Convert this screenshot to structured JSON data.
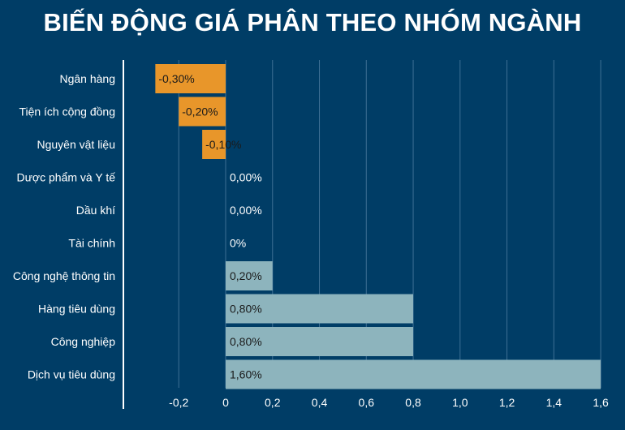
{
  "title": "BIẾN ĐỘNG GIÁ PHÂN THEO NHÓM NGÀNH",
  "colors": {
    "background": "#003d66",
    "negative_bar": "#e8962a",
    "positive_bar": "#8db4bd",
    "gridline": "#3d6f94",
    "text": "#ffffff",
    "bar_label_text": "#1a1a1a"
  },
  "chart_data": {
    "type": "bar",
    "orientation": "horizontal",
    "categories": [
      "Ngân hàng",
      "Tiện ích cộng đồng",
      "Nguyên vật liệu",
      "Dược phẩm và Y tế",
      "Dầu khí",
      "Tài chính",
      "Công nghệ thông tin",
      "Hàng tiêu dùng",
      "Công nghiệp",
      "Dịch vụ tiêu dùng"
    ],
    "values": [
      -0.3,
      -0.2,
      -0.1,
      0,
      0,
      0,
      0.2,
      0.8,
      0.8,
      1.6
    ],
    "data_labels": [
      "-0,30%",
      "-0,20%",
      "-0,10%",
      "0,00%",
      "0,00%",
      "0%",
      "0,20%",
      "0,80%",
      "0,80%",
      "1,60%"
    ],
    "xlim": [
      -0.43,
      1.6
    ],
    "x_ticks": [
      -0.2,
      0,
      0.2,
      0.4,
      0.6,
      0.8,
      1.0,
      1.2,
      1.4,
      1.6
    ],
    "x_tick_labels": [
      "-0,2",
      "0",
      "0,2",
      "0,4",
      "0,6",
      "0,8",
      "1,0",
      "1,2",
      "1,4",
      "1,6"
    ],
    "grid": true,
    "title": "BIẾN ĐỘNG GIÁ PHÂN THEO NHÓM NGÀNH",
    "xlabel": "",
    "ylabel": ""
  }
}
